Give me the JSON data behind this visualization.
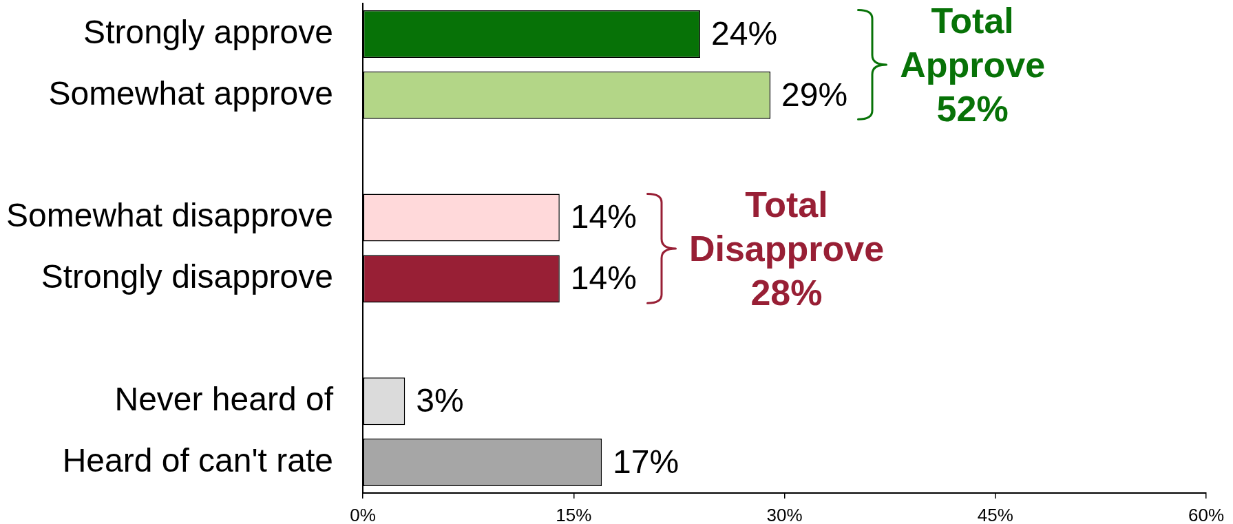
{
  "chart_data": {
    "type": "bar",
    "orientation": "horizontal",
    "categories": [
      "Strongly approve",
      "Somewhat approve",
      null,
      "Somewhat disapprove",
      "Strongly disapprove",
      null,
      "Never heard of",
      "Heard of can't rate"
    ],
    "values": [
      24,
      29,
      null,
      14,
      14,
      null,
      3,
      17
    ],
    "colors": [
      "#077207",
      "#b3d687",
      null,
      "#ffd9da",
      "#981f35",
      null,
      "#dbdbdb",
      "#a6a6a6"
    ],
    "value_labels": [
      "24%",
      "29%",
      null,
      "14%",
      "14%",
      null,
      "3%",
      "17%"
    ],
    "xlim": [
      0,
      60
    ],
    "xticks": [
      {
        "value": 0,
        "label": "0%"
      },
      {
        "value": 15,
        "label": "15%"
      },
      {
        "value": 30,
        "label": "30%"
      },
      {
        "value": 45,
        "label": "45%"
      },
      {
        "value": 60,
        "label": "60%"
      }
    ],
    "annotations": [
      "Total Approve 52%",
      "Total Disapprove 28%"
    ]
  }
}
